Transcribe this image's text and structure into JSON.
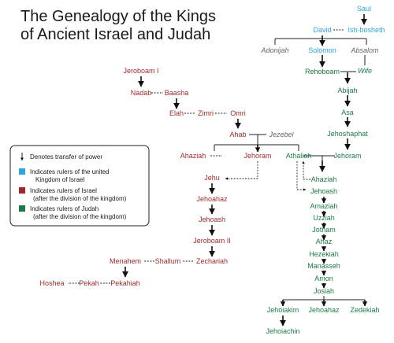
{
  "title": {
    "line1": "The Genealogy of the Kings",
    "line2": "of Ancient Israel and Judah"
  },
  "colors": {
    "united": "#2aa7dd",
    "israel": "#9d2a2a",
    "judah": "#1c7a46",
    "other": "#666666"
  },
  "legend": {
    "transfer": "Denotes transfer of power",
    "united_1": "Indicates rulers of the united",
    "united_2": "Kingdom of Israel",
    "israel_1": "Indicates rulers of Israel",
    "israel_2": "(after the division of the kingdom)",
    "judah_1": "Indicates rulers of Judah",
    "judah_2": "(after the division of the kingdom)"
  },
  "united": {
    "saul": "Saul",
    "david": "David",
    "ishbosheth": "Ish-bosheth",
    "solomon": "Solomon"
  },
  "others": {
    "adonijah": "Adonijah",
    "absalom": "Absalom",
    "jezebel": "Jezebel",
    "wife": "Wife"
  },
  "israel": {
    "jeroboam1": "Jeroboam I",
    "nadab": "Nadab",
    "baasha": "Baasha",
    "elah": "Elah",
    "zimri": "Zimri",
    "omri": "Omri",
    "ahab": "Ahab",
    "ahaziah": "Ahaziah",
    "jehoram": "Jehoram",
    "jehu": "Jehu",
    "jehoahaz": "Jehoahaz",
    "jehoash": "Jehoash",
    "jeroboam2": "Jeroboam II",
    "zechariah": "Zechariah",
    "shallum": "Shallum",
    "menahem": "Menahem",
    "pekahiah": "Pekahiah",
    "pekah": "Pekah",
    "hoshea": "Hoshea"
  },
  "judah": {
    "rehoboam": "Rehoboam",
    "abijah": "Abijah",
    "asa": "Asa",
    "jehoshaphat": "Jehoshaphat",
    "jehoram": "Jehoram",
    "athaliah": "Athaliah",
    "ahaziah": "Ahaziah",
    "jehoash": "Jehoash",
    "amaziah": "Amaziah",
    "uzziah": "Uzziah",
    "jotham": "Jotham",
    "ahaz": "Ahaz",
    "hezekiah": "Hezekiah",
    "manasseh": "Manasseh",
    "amon": "Amon",
    "josiah": "Josiah",
    "jehoiakim": "Jehoiakim",
    "jehoahaz": "Jehoahaz",
    "zedekiah": "Zedekiah",
    "jehoiachin": "Jehoiachin"
  }
}
